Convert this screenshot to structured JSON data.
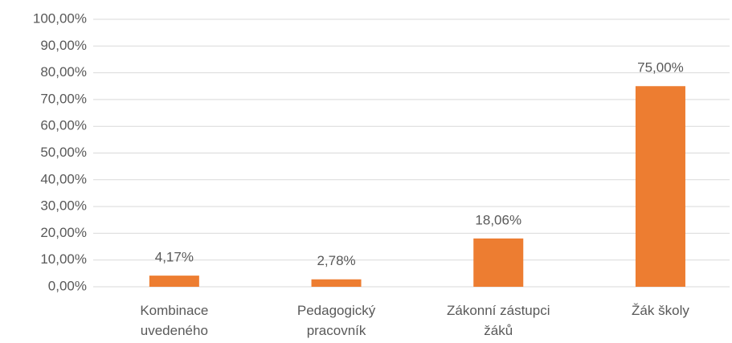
{
  "chart_data": {
    "type": "bar",
    "categories": [
      "Kombinace uvedeného",
      "Pedagogický pracovník",
      "Zákonní zástupci žáků",
      "Žák školy"
    ],
    "values": [
      4.17,
      2.78,
      18.06,
      75
    ],
    "value_labels": [
      "4,17%",
      "2,78%",
      "18,06%",
      "75,00%"
    ],
    "color": "#ed7d31",
    "ylim": [
      0,
      100
    ],
    "yticks": [
      {
        "value": 0,
        "label": "0,00%"
      },
      {
        "value": 10,
        "label": "10,00%"
      },
      {
        "value": 20,
        "label": "20,00%"
      },
      {
        "value": 30,
        "label": "30,00%"
      },
      {
        "value": 40,
        "label": "40,00%"
      },
      {
        "value": 50,
        "label": "50,00%"
      },
      {
        "value": 60,
        "label": "60,00%"
      },
      {
        "value": 70,
        "label": "70,00%"
      },
      {
        "value": 80,
        "label": "80,00%"
      },
      {
        "value": 90,
        "label": "90,00%"
      },
      {
        "value": 100,
        "label": "100,00%"
      }
    ],
    "grid": true
  }
}
